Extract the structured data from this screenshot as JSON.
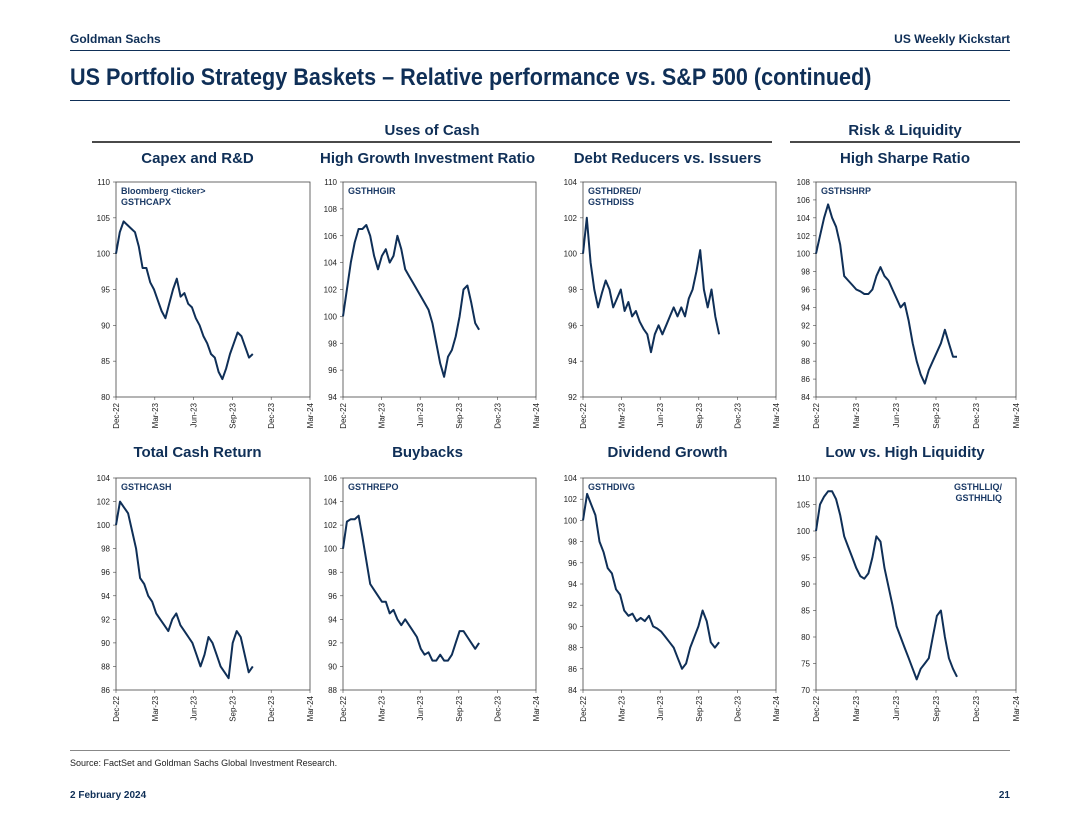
{
  "header": {
    "left": "Goldman Sachs",
    "right": "US Weekly Kickstart"
  },
  "title": "US Portfolio Strategy Baskets – Relative performance vs. S&P 500 (continued)",
  "groups": {
    "uses_of_cash": "Uses of Cash",
    "risk_liquidity": "Risk & Liquidity"
  },
  "footer": {
    "source": "Source: FactSet and Goldman Sachs Global Investment Research.",
    "date": "2 February 2024",
    "page": "21"
  },
  "colors": {
    "line": "#0f2f57",
    "title": "#0f2f57"
  },
  "chart_data": [
    {
      "type": "line",
      "title": "Capex and R&D",
      "tag": "Bloomberg <ticker>\nGSTHCAPX",
      "tag_align": "left",
      "x_ticks": [
        "Dec-22",
        "Mar-23",
        "Jun-23",
        "Sep-23",
        "Dec-23",
        "Mar-24"
      ],
      "ylim": [
        80,
        110
      ],
      "y_ticks": [
        80,
        85,
        90,
        95,
        100,
        105,
        110
      ],
      "series": [
        {
          "name": "GSTHCAPX",
          "values": [
            100,
            103,
            104.5,
            104,
            103.5,
            103,
            101,
            98,
            98,
            96,
            95,
            93.5,
            92,
            91,
            93,
            95,
            96.5,
            94,
            94.5,
            93,
            92.5,
            91,
            90,
            88.5,
            87.5,
            86,
            85.5,
            83.5,
            82.5,
            84,
            86,
            87.5,
            89,
            88.5,
            87,
            85.5,
            86
          ]
        }
      ]
    },
    {
      "type": "line",
      "title": "High Growth Investment Ratio",
      "tag": "GSTHHGIR",
      "tag_align": "left",
      "x_ticks": [
        "Dec-22",
        "Mar-23",
        "Jun-23",
        "Sep-23",
        "Dec-23",
        "Mar-24"
      ],
      "ylim": [
        94,
        110
      ],
      "y_ticks": [
        94,
        96,
        98,
        100,
        102,
        104,
        106,
        108,
        110
      ],
      "series": [
        {
          "name": "GSTHHGIR",
          "values": [
            100,
            102,
            104,
            105.5,
            106.5,
            106.5,
            106.8,
            106,
            104.5,
            103.5,
            104.5,
            105,
            104,
            104.5,
            106,
            105,
            103.5,
            103,
            102.5,
            102,
            101.5,
            101,
            100.5,
            99.5,
            98,
            96.5,
            95.5,
            97,
            97.5,
            98.5,
            100,
            102,
            102.3,
            101,
            99.5,
            99
          ]
        }
      ]
    },
    {
      "type": "line",
      "title": "Debt Reducers vs. Issuers",
      "tag": "GSTHDRED/\nGSTHDISS",
      "tag_align": "left",
      "x_ticks": [
        "Dec-22",
        "Mar-23",
        "Jun-23",
        "Sep-23",
        "Dec-23",
        "Mar-24"
      ],
      "ylim": [
        92,
        104
      ],
      "y_ticks": [
        92,
        94,
        96,
        98,
        100,
        102,
        104
      ],
      "series": [
        {
          "name": "GSTHDRED/GSTHDISS",
          "values": [
            100,
            102,
            99.5,
            98,
            97,
            97.8,
            98.5,
            98,
            97,
            97.5,
            98,
            96.8,
            97.3,
            96.5,
            96.8,
            96.2,
            95.8,
            95.5,
            94.5,
            95.5,
            96,
            95.5,
            96,
            96.5,
            97,
            96.5,
            97,
            96.5,
            97.5,
            98,
            99,
            100.2,
            98,
            97,
            98,
            96.5,
            95.5
          ]
        }
      ]
    },
    {
      "type": "line",
      "title": "High Sharpe Ratio",
      "tag": "GSTHSHRP",
      "tag_align": "left",
      "x_ticks": [
        "Dec-22",
        "Mar-23",
        "Jun-23",
        "Sep-23",
        "Dec-23",
        "Mar-24"
      ],
      "ylim": [
        84,
        108
      ],
      "y_ticks": [
        84,
        86,
        88,
        90,
        92,
        94,
        96,
        98,
        100,
        102,
        104,
        106,
        108
      ],
      "series": [
        {
          "name": "GSTHSHRP",
          "values": [
            100,
            102,
            104,
            105.5,
            104,
            103,
            101,
            97.5,
            97,
            96.5,
            96,
            95.8,
            95.5,
            95.5,
            96,
            97.5,
            98.5,
            97.5,
            97,
            96,
            95,
            94,
            94.5,
            92.5,
            90,
            88,
            86.5,
            85.5,
            87,
            88,
            89,
            90,
            91.5,
            90,
            88.5,
            88.5
          ]
        }
      ]
    },
    {
      "type": "line",
      "title": "Total Cash Return",
      "tag": "GSTHCASH",
      "tag_align": "left",
      "x_ticks": [
        "Dec-22",
        "Mar-23",
        "Jun-23",
        "Sep-23",
        "Dec-23",
        "Mar-24"
      ],
      "ylim": [
        86,
        104
      ],
      "y_ticks": [
        86,
        88,
        90,
        92,
        94,
        96,
        98,
        100,
        102,
        104
      ],
      "series": [
        {
          "name": "GSTHCASH",
          "values": [
            100,
            102,
            101.5,
            101,
            99.5,
            98,
            95.5,
            95,
            94,
            93.5,
            92.5,
            92,
            91.5,
            91,
            92,
            92.5,
            91.5,
            91,
            90.5,
            90,
            89,
            88,
            89,
            90.5,
            90,
            89,
            88,
            87.5,
            87,
            90,
            91,
            90.5,
            89,
            87.5,
            88
          ]
        }
      ]
    },
    {
      "type": "line",
      "title": "Buybacks",
      "tag": "GSTHREPO",
      "tag_align": "left",
      "x_ticks": [
        "Dec-22",
        "Mar-23",
        "Jun-23",
        "Sep-23",
        "Dec-23",
        "Mar-24"
      ],
      "ylim": [
        88,
        106
      ],
      "y_ticks": [
        88,
        90,
        92,
        94,
        96,
        98,
        100,
        102,
        104,
        106
      ],
      "series": [
        {
          "name": "GSTHREPO",
          "values": [
            100,
            102.3,
            102.5,
            102.5,
            102.8,
            101,
            99,
            97,
            96.5,
            96,
            95.5,
            95.5,
            94.5,
            94.8,
            94,
            93.5,
            94,
            93.5,
            93,
            92.5,
            91.5,
            91,
            91.2,
            90.5,
            90.5,
            91,
            90.5,
            90.5,
            91,
            92,
            93,
            93,
            92.5,
            92,
            91.5,
            92
          ]
        }
      ]
    },
    {
      "type": "line",
      "title": "Dividend Growth",
      "tag": "GSTHDIVG",
      "tag_align": "left",
      "x_ticks": [
        "Dec-22",
        "Mar-23",
        "Jun-23",
        "Sep-23",
        "Dec-23",
        "Mar-24"
      ],
      "ylim": [
        84,
        104
      ],
      "y_ticks": [
        84,
        86,
        88,
        90,
        92,
        94,
        96,
        98,
        100,
        102,
        104
      ],
      "series": [
        {
          "name": "GSTHDIVG",
          "values": [
            100,
            102.5,
            101.5,
            100.5,
            98,
            97,
            95.5,
            95,
            93.5,
            93,
            91.5,
            91,
            91.2,
            90.5,
            90.8,
            90.5,
            91,
            90,
            89.8,
            89.5,
            89,
            88.5,
            88,
            87,
            86,
            86.5,
            88,
            89,
            90,
            91.5,
            90.5,
            88.5,
            88,
            88.5
          ]
        }
      ]
    },
    {
      "type": "line",
      "title": "Low vs. High Liquidity",
      "tag": "GSTHLLIQ/\nGSTHHLIQ",
      "tag_align": "right",
      "x_ticks": [
        "Dec-22",
        "Mar-23",
        "Jun-23",
        "Sep-23",
        "Dec-23",
        "Mar-24"
      ],
      "ylim": [
        70,
        110
      ],
      "y_ticks": [
        70,
        75,
        80,
        85,
        90,
        95,
        100,
        105,
        110
      ],
      "series": [
        {
          "name": "GSTHLLIQ/GSTHHLIQ",
          "values": [
            100,
            105,
            106.5,
            107.5,
            107.5,
            106,
            103,
            99,
            97,
            95,
            93,
            91.5,
            91,
            92,
            95,
            99,
            98,
            93,
            89.5,
            86,
            82,
            80,
            78,
            76,
            74,
            72,
            74,
            75,
            76,
            80,
            84,
            85,
            80,
            76,
            74,
            72.5
          ]
        }
      ]
    }
  ]
}
